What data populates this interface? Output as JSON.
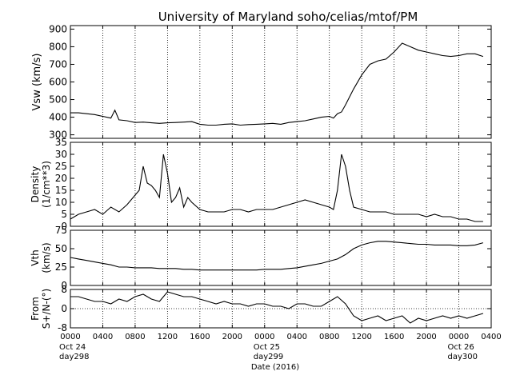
{
  "chart_data": [
    {
      "type": "line",
      "title": "University of Maryland  soho/celias/mtof/PM",
      "ylabel": "Vsw (km/s)",
      "ylim": [
        280,
        920
      ],
      "yticks": [
        300,
        400,
        500,
        600,
        700,
        800,
        900
      ],
      "grid": "vertical dotted at 4-hour intervals",
      "x_hours": [
        0,
        1,
        2,
        3,
        4,
        5,
        5.5,
        6,
        7,
        8,
        9,
        10,
        11,
        12,
        13,
        14,
        15,
        16,
        17,
        18,
        19,
        20,
        21,
        22,
        23,
        24,
        25,
        26,
        27,
        28,
        29,
        30,
        31,
        32,
        32.5,
        33,
        33.5,
        34,
        35,
        36,
        37,
        38,
        39,
        40,
        41,
        42,
        43,
        44,
        45,
        46,
        47,
        48,
        49,
        50,
        51
      ],
      "values": [
        425,
        425,
        420,
        415,
        405,
        395,
        440,
        385,
        380,
        370,
        372,
        368,
        365,
        368,
        370,
        372,
        375,
        360,
        355,
        355,
        360,
        362,
        355,
        358,
        360,
        362,
        365,
        360,
        370,
        375,
        380,
        390,
        400,
        405,
        395,
        420,
        430,
        470,
        560,
        640,
        700,
        720,
        730,
        770,
        820,
        800,
        780,
        770,
        760,
        750,
        745,
        750,
        760,
        760,
        745
      ],
      "color": "#000000"
    },
    {
      "type": "line",
      "ylabel": "Density",
      "ylabel2": "(1/cm**3)",
      "ylim": [
        0,
        35
      ],
      "yticks": [
        0,
        5,
        10,
        15,
        20,
        25,
        30,
        35
      ],
      "x_hours": [
        0,
        1,
        2,
        3,
        4,
        5,
        6,
        7,
        8,
        8.5,
        9,
        9.5,
        10,
        10.5,
        11,
        11.5,
        12,
        12.5,
        13,
        13.5,
        14,
        14.5,
        15,
        16,
        17,
        18,
        19,
        20,
        21,
        22,
        23,
        24,
        25,
        26,
        27,
        28,
        29,
        30,
        31,
        32,
        32.5,
        33,
        33.5,
        34,
        34.5,
        35,
        36,
        37,
        38,
        39,
        40,
        41,
        42,
        43,
        44,
        45,
        46,
        47,
        48,
        49,
        50,
        51
      ],
      "values": [
        3,
        5,
        6,
        7,
        5,
        8,
        6,
        9,
        13,
        15,
        25,
        18,
        17,
        15,
        12,
        30,
        22,
        10,
        12,
        16,
        8,
        12,
        10,
        7,
        6,
        6,
        6,
        7,
        7,
        6,
        7,
        7,
        7,
        8,
        9,
        10,
        11,
        10,
        9,
        8,
        7,
        15,
        30,
        25,
        15,
        8,
        7,
        6,
        6,
        6,
        5,
        5,
        5,
        5,
        4,
        5,
        4,
        4,
        3,
        3,
        2,
        2
      ],
      "color": "#000000"
    },
    {
      "type": "line",
      "ylabel": "Vth",
      "ylabel2": "(km/s)",
      "ylim": [
        0,
        75
      ],
      "yticks": [
        0,
        25,
        50,
        75
      ],
      "x_hours": [
        0,
        1,
        2,
        3,
        4,
        5,
        6,
        7,
        8,
        9,
        10,
        11,
        12,
        13,
        14,
        15,
        16,
        17,
        18,
        19,
        20,
        21,
        22,
        23,
        24,
        25,
        26,
        27,
        28,
        29,
        30,
        31,
        32,
        33,
        34,
        35,
        36,
        37,
        38,
        39,
        40,
        41,
        42,
        43,
        44,
        45,
        46,
        47,
        48,
        49,
        50,
        51
      ],
      "values": [
        38,
        36,
        34,
        32,
        30,
        28,
        25,
        25,
        24,
        24,
        24,
        23,
        23,
        23,
        22,
        22,
        21,
        21,
        21,
        21,
        21,
        21,
        21,
        21,
        22,
        22,
        22,
        23,
        24,
        26,
        28,
        30,
        33,
        36,
        42,
        50,
        55,
        58,
        60,
        60,
        59,
        58,
        57,
        56,
        56,
        55,
        55,
        55,
        54,
        54,
        55,
        58
      ],
      "color": "#000000"
    },
    {
      "type": "line",
      "ylabel": "From",
      "ylabel2": "S+/N-(°)",
      "ylim": [
        -8,
        8
      ],
      "yticks": [
        -8,
        0,
        8
      ],
      "yticklabels": [
        "-8",
        "0",
        "8"
      ],
      "x_hours": [
        0,
        1,
        2,
        3,
        4,
        5,
        6,
        7,
        8,
        9,
        10,
        11,
        12,
        13,
        14,
        15,
        16,
        17,
        18,
        19,
        20,
        21,
        22,
        23,
        24,
        25,
        26,
        27,
        28,
        29,
        30,
        31,
        32,
        33,
        34,
        35,
        36,
        37,
        38,
        39,
        40,
        41,
        42,
        43,
        44,
        45,
        46,
        47,
        48,
        49,
        50,
        51
      ],
      "values": [
        5,
        5,
        4,
        3,
        3,
        2,
        4,
        3,
        5,
        6,
        4,
        3,
        7,
        6,
        5,
        5,
        4,
        3,
        2,
        3,
        2,
        2,
        1,
        2,
        2,
        1,
        1,
        0,
        2,
        2,
        1,
        1,
        3,
        5,
        2,
        -3,
        -5,
        -4,
        -3,
        -5,
        -4,
        -3,
        -6,
        -4,
        -5,
        -4,
        -3,
        -4,
        -3,
        -4,
        -3,
        -2
      ],
      "color": "#000000"
    }
  ],
  "x_axis": {
    "xlabel": "Date (2016)",
    "xlim_hours": [
      0,
      52
    ],
    "tick_hours": [
      0,
      4,
      8,
      12,
      16,
      20,
      24,
      28,
      32,
      36,
      40,
      44,
      48,
      52
    ],
    "tick_labels": [
      "0000",
      "0400",
      "0800",
      "1200",
      "1600",
      "2000",
      "0000",
      "0400",
      "0800",
      "1200",
      "1600",
      "2000",
      "0000",
      "0400"
    ],
    "date_labels": [
      {
        "hour": 0,
        "line1": "Oct 24",
        "line2": "day298"
      },
      {
        "hour": 24,
        "line1": "Oct 25",
        "line2": "day299"
      },
      {
        "hour": 48,
        "line1": "Oct 26",
        "line2": "day300"
      }
    ]
  }
}
